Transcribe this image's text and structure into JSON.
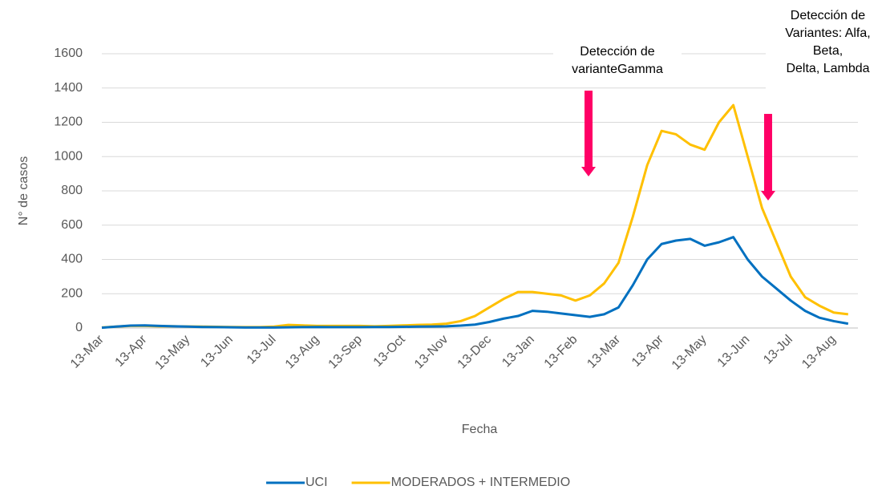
{
  "chart_data": {
    "type": "line",
    "x_label": "Fecha",
    "y_label": "N° de casos",
    "categories": [
      "13-Mar",
      null,
      null,
      "13-Apr",
      null,
      null,
      "13-May",
      null,
      null,
      "13-Jun",
      null,
      null,
      "13-Jul",
      null,
      null,
      "13-Aug",
      null,
      null,
      "13-Sep",
      null,
      null,
      "13-Oct",
      null,
      null,
      "13-Nov",
      null,
      null,
      "13-Dec",
      null,
      null,
      "13-Jan",
      null,
      null,
      "13-Feb",
      null,
      null,
      "13-Mar",
      null,
      null,
      "13-Apr",
      null,
      null,
      "13-May",
      null,
      null,
      "13-Jun",
      null,
      null,
      "13-Jul",
      null,
      null,
      "13-Aug",
      null
    ],
    "series": [
      {
        "name": "UCI",
        "color": "#0070c0",
        "values": [
          2,
          8,
          14,
          15,
          12,
          10,
          8,
          6,
          5,
          4,
          3,
          3,
          3,
          4,
          5,
          6,
          5,
          5,
          5,
          6,
          6,
          7,
          8,
          9,
          10,
          14,
          20,
          35,
          55,
          70,
          100,
          95,
          85,
          75,
          65,
          80,
          120,
          250,
          400,
          490,
          510,
          520,
          480,
          500,
          530,
          400,
          300,
          230,
          160,
          100,
          60,
          40,
          25
        ]
      },
      {
        "name": "MODERADOS + INTERMEDIO",
        "color": "#ffc000",
        "values": [
          3,
          8,
          12,
          12,
          10,
          10,
          9,
          8,
          7,
          6,
          5,
          5,
          8,
          18,
          15,
          12,
          12,
          12,
          12,
          10,
          12,
          15,
          18,
          20,
          25,
          40,
          70,
          120,
          170,
          210,
          210,
          200,
          190,
          160,
          190,
          260,
          380,
          650,
          950,
          1150,
          1130,
          1070,
          1040,
          1200,
          1300,
          1000,
          700,
          500,
          300,
          180,
          130,
          90,
          80
        ]
      }
    ],
    "ylim": [
      0,
      1600
    ],
    "yticks": [
      0,
      200,
      400,
      600,
      800,
      1000,
      1200,
      1400,
      1600
    ],
    "grid": true,
    "legend": "bottom",
    "annotations": [
      {
        "lines": [
          "Detección de",
          "varianteGamma"
        ],
        "x_index": 34
      },
      {
        "lines": [
          "Detección de",
          "Variantes: Alfa,",
          "Beta,",
          "Delta, Lambda"
        ],
        "x_index": 46
      }
    ]
  }
}
